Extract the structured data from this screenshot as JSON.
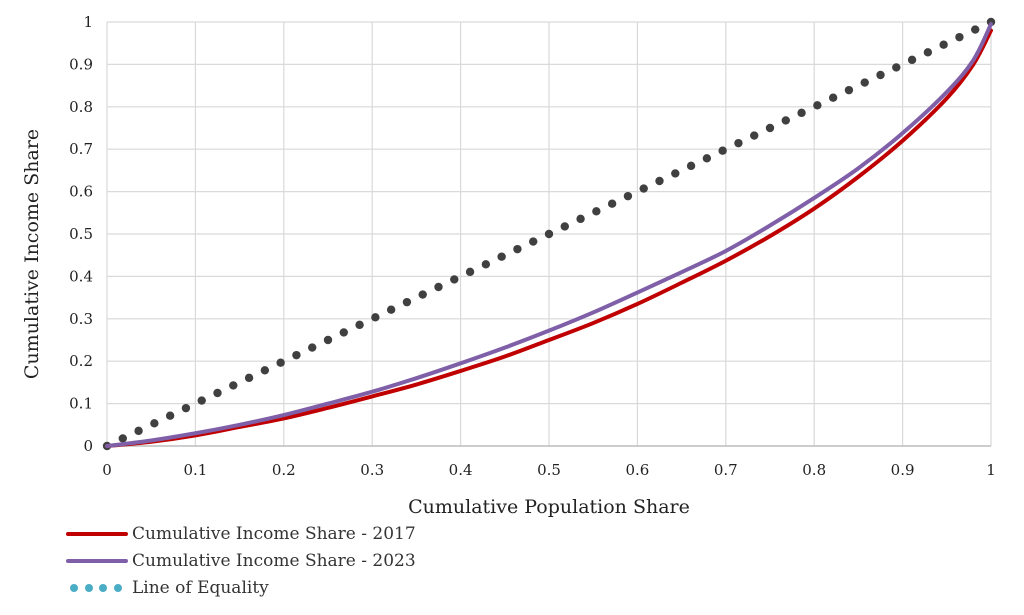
{
  "chart_data": {
    "type": "line",
    "xlabel": "Cumulative Population Share",
    "ylabel": "Cumulative Income Share",
    "xlim": [
      0,
      1
    ],
    "ylim": [
      0,
      1
    ],
    "x_ticks": [
      "0",
      "0.1",
      "0.2",
      "0.3",
      "0.4",
      "0.5",
      "0.6",
      "0.7",
      "0.8",
      "0.9",
      "1"
    ],
    "y_ticks": [
      "0",
      "0.1",
      "0.2",
      "0.3",
      "0.4",
      "0.5",
      "0.6",
      "0.7",
      "0.8",
      "0.9",
      "1"
    ],
    "grid": true,
    "legend_position": "bottom-left",
    "series": [
      {
        "name": "Cumulative Income Share - 2017",
        "color": "#C00000",
        "style": "solid",
        "x": [
          0,
          0.05,
          0.1,
          0.15,
          0.2,
          0.25,
          0.3,
          0.35,
          0.4,
          0.45,
          0.5,
          0.55,
          0.6,
          0.65,
          0.7,
          0.75,
          0.8,
          0.85,
          0.9,
          0.95,
          0.98,
          1
        ],
        "y": [
          0,
          0.01,
          0.025,
          0.045,
          0.065,
          0.09,
          0.117,
          0.145,
          0.177,
          0.211,
          0.25,
          0.29,
          0.335,
          0.385,
          0.437,
          0.495,
          0.56,
          0.635,
          0.72,
          0.82,
          0.9,
          0.98
        ]
      },
      {
        "name": "Cumulative Income Share - 2023",
        "color": "#7F5FA8",
        "style": "solid",
        "x": [
          0,
          0.05,
          0.1,
          0.15,
          0.2,
          0.25,
          0.3,
          0.35,
          0.4,
          0.45,
          0.5,
          0.55,
          0.6,
          0.65,
          0.7,
          0.75,
          0.8,
          0.85,
          0.9,
          0.95,
          0.98,
          1
        ],
        "y": [
          0,
          0.013,
          0.03,
          0.05,
          0.073,
          0.1,
          0.128,
          0.16,
          0.195,
          0.232,
          0.272,
          0.315,
          0.362,
          0.41,
          0.46,
          0.52,
          0.585,
          0.655,
          0.738,
          0.835,
          0.91,
          0.995
        ]
      },
      {
        "name": "Line of Equality",
        "color": "#404040",
        "legend_color": "#4BACC6",
        "style": "dotted",
        "x": [
          0,
          1
        ],
        "y": [
          0,
          1
        ]
      }
    ]
  }
}
